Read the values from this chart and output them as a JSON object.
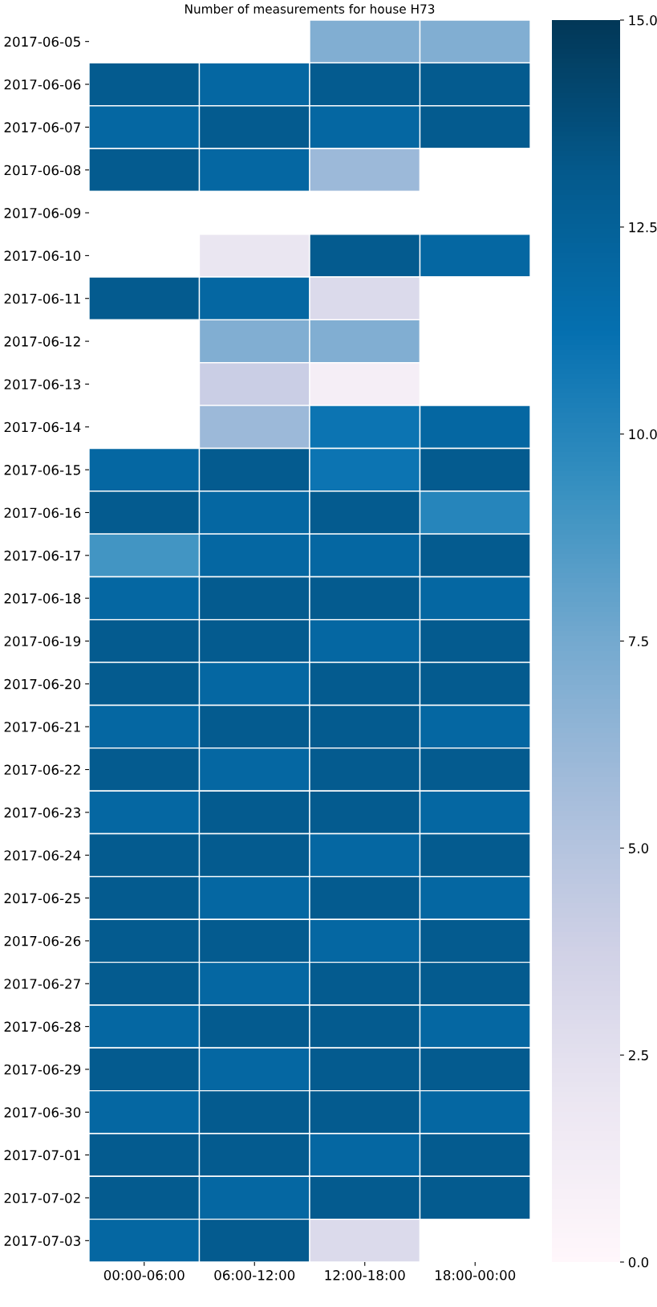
{
  "chart_data": {
    "type": "heatmap",
    "title": "Number of measurements for house H73",
    "categories": [
      "00:00-06:00",
      "06:00-12:00",
      "12:00-18:00",
      "18:00-00:00"
    ],
    "y_categories": [
      "2017-06-05",
      "2017-06-06",
      "2017-06-07",
      "2017-06-08",
      "2017-06-09",
      "2017-06-10",
      "2017-06-11",
      "2017-06-12",
      "2017-06-13",
      "2017-06-14",
      "2017-06-15",
      "2017-06-16",
      "2017-06-17",
      "2017-06-18",
      "2017-06-19",
      "2017-06-20",
      "2017-06-21",
      "2017-06-22",
      "2017-06-23",
      "2017-06-24",
      "2017-06-25",
      "2017-06-26",
      "2017-06-27",
      "2017-06-28",
      "2017-06-29",
      "2017-06-30",
      "2017-07-01",
      "2017-07-02",
      "2017-07-03"
    ],
    "cells": [
      [
        null,
        null,
        7,
        7
      ],
      [
        13,
        12,
        13,
        13
      ],
      [
        12,
        13,
        12,
        13
      ],
      [
        13,
        12,
        6,
        null
      ],
      [
        null,
        null,
        null,
        null
      ],
      [
        null,
        2,
        13,
        12
      ],
      [
        13,
        12,
        3,
        null
      ],
      [
        null,
        7,
        7,
        null
      ],
      [
        null,
        4,
        1,
        null
      ],
      [
        null,
        6,
        11,
        12
      ],
      [
        12,
        13,
        11,
        13
      ],
      [
        13,
        12,
        13,
        10
      ],
      [
        9,
        12,
        12,
        13
      ],
      [
        12,
        13,
        13,
        12
      ],
      [
        13,
        13,
        12,
        13
      ],
      [
        13,
        12,
        13,
        13
      ],
      [
        12,
        13,
        13,
        12
      ],
      [
        13,
        12,
        13,
        13
      ],
      [
        12,
        13,
        13,
        12
      ],
      [
        13,
        13,
        12,
        13
      ],
      [
        13,
        12,
        13,
        12
      ],
      [
        13,
        13,
        12,
        13
      ],
      [
        13,
        12,
        13,
        13
      ],
      [
        12,
        13,
        13,
        12
      ],
      [
        13,
        12,
        13,
        13
      ],
      [
        12,
        13,
        13,
        12
      ],
      [
        13,
        13,
        12,
        13
      ],
      [
        13,
        12,
        13,
        13
      ],
      [
        12,
        13,
        3,
        null
      ]
    ],
    "clim": [
      0,
      15
    ],
    "cticks": [
      {
        "value": 0,
        "label": "0.0"
      },
      {
        "value": 2.5,
        "label": "2.5"
      },
      {
        "value": 5,
        "label": "5.0"
      },
      {
        "value": 7.5,
        "label": "7.5"
      },
      {
        "value": 10,
        "label": "10.0"
      },
      {
        "value": 12.5,
        "label": "12.5"
      },
      {
        "value": 15,
        "label": "15.0"
      }
    ]
  }
}
